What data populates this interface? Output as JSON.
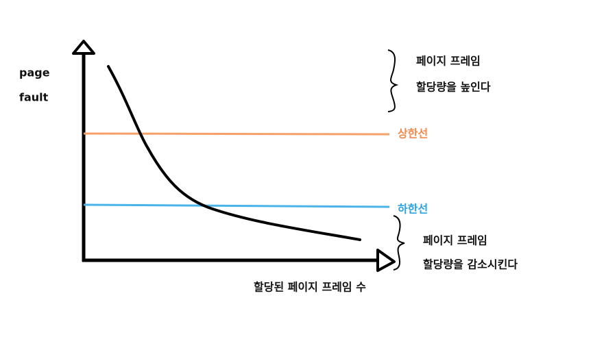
{
  "y_axis_label": {
    "line1": "page",
    "line2": "fault"
  },
  "x_axis_label": "할당된 페이지 프레임 수",
  "upper_line": {
    "label": "상한선"
  },
  "lower_line": {
    "label": "하한선"
  },
  "upper_note": {
    "line1": "페이지 프레임",
    "line2": "할당량을 높인다"
  },
  "lower_note": {
    "line1": "페이지 프레임",
    "line2": "할당량을 감소시킨다"
  }
}
